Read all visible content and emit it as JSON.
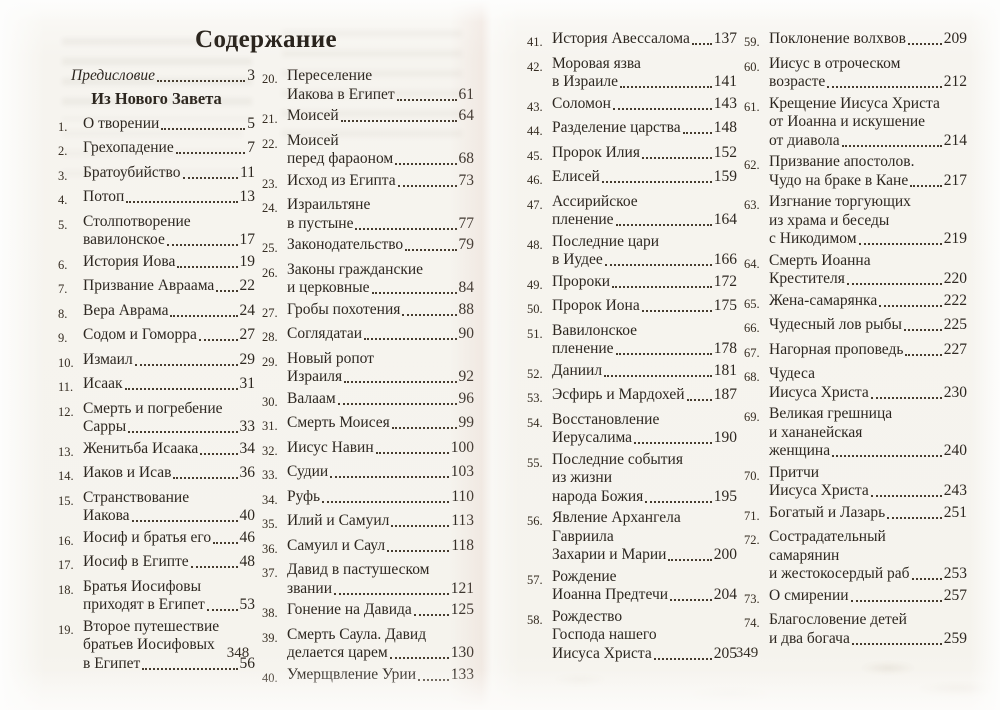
{
  "title": "Содержание",
  "left_page": {
    "folio": "348",
    "column1": {
      "preface": {
        "label": "Предисловие",
        "page": "3"
      },
      "section_heading": "Из Нового Завета",
      "entries": [
        {
          "num": "1.",
          "lines": [
            "О творении"
          ],
          "page": "5"
        },
        {
          "num": "2.",
          "lines": [
            "Грехопадение"
          ],
          "page": "7"
        },
        {
          "num": "3.",
          "lines": [
            "Братоубийство"
          ],
          "page": "11"
        },
        {
          "num": "4.",
          "lines": [
            "Потоп"
          ],
          "page": "13"
        },
        {
          "num": "5.",
          "lines": [
            "Столпотворение",
            "вавилонское"
          ],
          "page": "17"
        },
        {
          "num": "6.",
          "lines": [
            "История Иова"
          ],
          "page": "19"
        },
        {
          "num": "7.",
          "lines": [
            "Призвание Авраама"
          ],
          "page": "22"
        },
        {
          "num": "8.",
          "lines": [
            "Вера Аврама"
          ],
          "page": "24"
        },
        {
          "num": "9.",
          "lines": [
            "Содом и Гоморра"
          ],
          "page": "27"
        },
        {
          "num": "10.",
          "lines": [
            "Измаил"
          ],
          "page": "29"
        },
        {
          "num": "11.",
          "lines": [
            "Исаак"
          ],
          "page": "31"
        },
        {
          "num": "12.",
          "lines": [
            "Смерть и погребение",
            "Сарры"
          ],
          "page": "33"
        },
        {
          "num": "13.",
          "lines": [
            "Женитьба Исаака"
          ],
          "page": "34"
        },
        {
          "num": "14.",
          "lines": [
            "Иаков и Исав"
          ],
          "page": "36"
        },
        {
          "num": "15.",
          "lines": [
            "Странствование",
            "Иакова"
          ],
          "page": "40"
        },
        {
          "num": "16.",
          "lines": [
            "Иосиф и братья его"
          ],
          "page": "46"
        },
        {
          "num": "17.",
          "lines": [
            "Иосиф в Египте"
          ],
          "page": "48"
        },
        {
          "num": "18.",
          "lines": [
            "Братья Иосифовы",
            "приходят в Египет"
          ],
          "page": "53"
        },
        {
          "num": "19.",
          "lines": [
            "Второе путешествие",
            "братьев Иосифовых",
            "в Египет"
          ],
          "page": "56"
        }
      ]
    },
    "column2": {
      "entries": [
        {
          "num": "20.",
          "lines": [
            "Переселение",
            "Иакова в Египет"
          ],
          "page": "61"
        },
        {
          "num": "21.",
          "lines": [
            "Моисей"
          ],
          "page": "64"
        },
        {
          "num": "22.",
          "lines": [
            "Моисей",
            "перед фараоном"
          ],
          "page": "68"
        },
        {
          "num": "23.",
          "lines": [
            "Исход из Египта"
          ],
          "page": "73"
        },
        {
          "num": "24.",
          "lines": [
            "Израильтяне",
            "в пустыне"
          ],
          "page": "77"
        },
        {
          "num": "25.",
          "lines": [
            "Законодательство"
          ],
          "page": "79"
        },
        {
          "num": "26.",
          "lines": [
            "Законы гражданские",
            "и церковные"
          ],
          "page": "84"
        },
        {
          "num": "27.",
          "lines": [
            "Гробы похотения"
          ],
          "page": "88"
        },
        {
          "num": "28.",
          "lines": [
            "Соглядатаи"
          ],
          "page": "90"
        },
        {
          "num": "29.",
          "lines": [
            "Новый ропот",
            "Израиля"
          ],
          "page": "92"
        },
        {
          "num": "30.",
          "lines": [
            "Валаам"
          ],
          "page": "96"
        },
        {
          "num": "31.",
          "lines": [
            "Смерть Моисея"
          ],
          "page": "99"
        },
        {
          "num": "32.",
          "lines": [
            "Иисус Навин"
          ],
          "page": "100"
        },
        {
          "num": "33.",
          "lines": [
            "Судии"
          ],
          "page": "103"
        },
        {
          "num": "34.",
          "lines": [
            "Руфь"
          ],
          "page": "110"
        },
        {
          "num": "35.",
          "lines": [
            "Илий и Самуил"
          ],
          "page": "113"
        },
        {
          "num": "36.",
          "lines": [
            "Самуил и Саул"
          ],
          "page": "118"
        },
        {
          "num": "37.",
          "lines": [
            "Давид в пастушеском",
            "звании"
          ],
          "page": "121"
        },
        {
          "num": "38.",
          "lines": [
            "Гонение на Давида"
          ],
          "page": "125"
        },
        {
          "num": "39.",
          "lines": [
            "Смерть Саула. Давид",
            "делается царем"
          ],
          "page": "130"
        },
        {
          "num": "40.",
          "lines": [
            "Умерщвление Урии"
          ],
          "page": "133"
        }
      ]
    }
  },
  "right_page": {
    "folio": "349",
    "column3": {
      "entries": [
        {
          "num": "41.",
          "lines": [
            "История Авессалома"
          ],
          "page": "137"
        },
        {
          "num": "42.",
          "lines": [
            "Моровая язва",
            "в Израиле"
          ],
          "page": "141"
        },
        {
          "num": "43.",
          "lines": [
            "Соломон"
          ],
          "page": "143"
        },
        {
          "num": "44.",
          "lines": [
            "Разделение царства"
          ],
          "page": "148"
        },
        {
          "num": "45.",
          "lines": [
            "Пророк Илия"
          ],
          "page": "152"
        },
        {
          "num": "46.",
          "lines": [
            "Елисей"
          ],
          "page": "159"
        },
        {
          "num": "47.",
          "lines": [
            "Ассирийское",
            "пленение"
          ],
          "page": "164"
        },
        {
          "num": "48.",
          "lines": [
            "Последние цари",
            "в Иудее"
          ],
          "page": "166"
        },
        {
          "num": "49.",
          "lines": [
            "Пророки"
          ],
          "page": "172"
        },
        {
          "num": "50.",
          "lines": [
            "Пророк Иона"
          ],
          "page": "175"
        },
        {
          "num": "51.",
          "lines": [
            "Вавилонское",
            "пленение"
          ],
          "page": "178"
        },
        {
          "num": "52.",
          "lines": [
            "Даниил"
          ],
          "page": "181"
        },
        {
          "num": "53.",
          "lines": [
            "Эсфирь и Мардохей"
          ],
          "page": "187"
        },
        {
          "num": "54.",
          "lines": [
            "Восстановление",
            "Иерусалима"
          ],
          "page": "190"
        },
        {
          "num": "55.",
          "lines": [
            "Последние события",
            "из жизни",
            "народа Божия"
          ],
          "page": "195"
        },
        {
          "num": "56.",
          "lines": [
            "Явление Архангела",
            "Гавриила",
            "Захарии и Марии"
          ],
          "page": "200"
        },
        {
          "num": "57.",
          "lines": [
            "Рождение",
            "Иоанна Предтечи"
          ],
          "page": "204"
        },
        {
          "num": "58.",
          "lines": [
            "Рождество",
            "Господа нашего",
            "Иисуса Христа"
          ],
          "page": "205"
        }
      ]
    },
    "column4": {
      "entries": [
        {
          "num": "59.",
          "lines": [
            "Поклонение волхвов"
          ],
          "page": "209"
        },
        {
          "num": "60.",
          "lines": [
            "Иисус в отроческом",
            "возрасте"
          ],
          "page": "212"
        },
        {
          "num": "61.",
          "lines": [
            "Крещение Иисуса Христа",
            "от Иоанна и искушение",
            "от диавола"
          ],
          "page": "214"
        },
        {
          "num": "62.",
          "lines": [
            "Призвание апостолов.",
            "Чудо на браке в Кане"
          ],
          "page": "217"
        },
        {
          "num": "63.",
          "lines": [
            "Изгнание торгующих",
            "из храма и беседы",
            "с Никодимом"
          ],
          "page": "219"
        },
        {
          "num": "64.",
          "lines": [
            "Смерть Иоанна",
            "Крестителя"
          ],
          "page": "220"
        },
        {
          "num": "65.",
          "lines": [
            "Жена-самарянка"
          ],
          "page": "222"
        },
        {
          "num": "66.",
          "lines": [
            "Чудесный лов рыбы"
          ],
          "page": "225"
        },
        {
          "num": "67.",
          "lines": [
            "Нагорная проповедь"
          ],
          "page": "227"
        },
        {
          "num": "68.",
          "lines": [
            "Чудеса",
            "Иисуса Христа"
          ],
          "page": "230"
        },
        {
          "num": "69.",
          "lines": [
            "Великая грешница",
            "и хананейская",
            "женщина"
          ],
          "page": "240"
        },
        {
          "num": "70.",
          "lines": [
            "Притчи",
            "Иисуса Христа"
          ],
          "page": "243"
        },
        {
          "num": "71.",
          "lines": [
            "Богатый и Лазарь"
          ],
          "page": "251"
        },
        {
          "num": "72.",
          "lines": [
            "Сострадательный",
            "самарянин",
            "и жестокосердый раб"
          ],
          "page": "253"
        },
        {
          "num": "73.",
          "lines": [
            "О смирении"
          ],
          "page": "257"
        },
        {
          "num": "74.",
          "lines": [
            "Благословение детей",
            "и два богача"
          ],
          "page": "259"
        }
      ]
    }
  }
}
